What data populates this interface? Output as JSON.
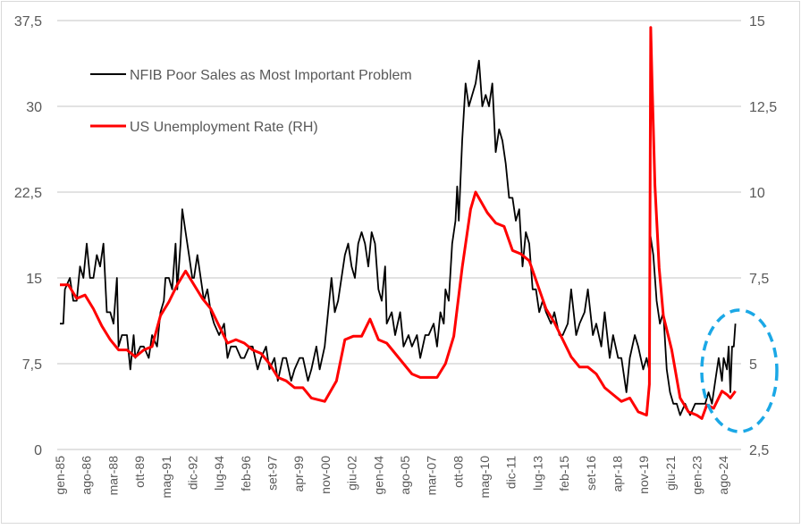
{
  "chart_data": {
    "type": "line",
    "title": "",
    "xlabel": "",
    "ylabel": "",
    "x_tick_labels": [
      "gen-85",
      "ago-86",
      "mar-88",
      "ott-89",
      "mag-91",
      "dic-92",
      "lug-94",
      "feb-96",
      "set-97",
      "apr-99",
      "nov-00",
      "giu-02",
      "gen-04",
      "ago-05",
      "mar-07",
      "ott-08",
      "mag-10",
      "dic-11",
      "lug-13",
      "feb-15",
      "set-16",
      "apr-18",
      "nov-19",
      "giu-21",
      "gen-23",
      "ago-24"
    ],
    "x_range_years": [
      1985.0,
      2025.3
    ],
    "y_left": {
      "range": [
        0,
        37.5
      ],
      "ticks": [
        "0",
        "7,5",
        "15",
        "22,5",
        "30",
        "37,5"
      ],
      "tick_values": [
        0,
        7.5,
        15,
        22.5,
        30,
        37.5
      ]
    },
    "y_right": {
      "range": [
        2.5,
        15
      ],
      "ticks": [
        "2,5",
        "5",
        "7,5",
        "10",
        "12,5",
        "15"
      ],
      "tick_values": [
        2.5,
        5,
        7.5,
        10,
        12.5,
        15
      ]
    },
    "grid": true,
    "legend_placement": "top-left",
    "series": [
      {
        "name": "NFIB Poor Sales as Most Important Problem",
        "axis": "left",
        "color": "#000000",
        "points": [
          [
            1985.0,
            11
          ],
          [
            1985.2,
            11
          ],
          [
            1985.3,
            14
          ],
          [
            1985.6,
            15
          ],
          [
            1985.8,
            13
          ],
          [
            1986.0,
            13
          ],
          [
            1986.2,
            16
          ],
          [
            1986.4,
            15
          ],
          [
            1986.6,
            18
          ],
          [
            1986.8,
            15
          ],
          [
            1987.0,
            15
          ],
          [
            1987.2,
            17
          ],
          [
            1987.4,
            16
          ],
          [
            1987.6,
            18
          ],
          [
            1987.8,
            12
          ],
          [
            1988.0,
            12
          ],
          [
            1988.2,
            11
          ],
          [
            1988.4,
            15
          ],
          [
            1988.5,
            9
          ],
          [
            1988.7,
            10
          ],
          [
            1989.0,
            10
          ],
          [
            1989.2,
            7
          ],
          [
            1989.4,
            10
          ],
          [
            1989.5,
            8
          ],
          [
            1989.8,
            9
          ],
          [
            1990.0,
            9
          ],
          [
            1990.3,
            8
          ],
          [
            1990.5,
            10
          ],
          [
            1990.8,
            9
          ],
          [
            1991.0,
            12
          ],
          [
            1991.2,
            13
          ],
          [
            1991.3,
            15
          ],
          [
            1991.5,
            15
          ],
          [
            1991.7,
            14
          ],
          [
            1991.9,
            18
          ],
          [
            1992.0,
            14
          ],
          [
            1992.2,
            18
          ],
          [
            1992.3,
            21
          ],
          [
            1992.5,
            19
          ],
          [
            1992.7,
            17
          ],
          [
            1992.9,
            15
          ],
          [
            1993.0,
            15
          ],
          [
            1993.2,
            17
          ],
          [
            1993.4,
            15
          ],
          [
            1993.6,
            13
          ],
          [
            1993.8,
            14
          ],
          [
            1994.0,
            12
          ],
          [
            1994.2,
            11
          ],
          [
            1994.5,
            10
          ],
          [
            1994.8,
            11
          ],
          [
            1995.0,
            8
          ],
          [
            1995.2,
            9
          ],
          [
            1995.5,
            9
          ],
          [
            1995.8,
            8
          ],
          [
            1996.0,
            8
          ],
          [
            1996.3,
            9
          ],
          [
            1996.5,
            9
          ],
          [
            1996.8,
            7
          ],
          [
            1997.0,
            8
          ],
          [
            1997.3,
            9
          ],
          [
            1997.5,
            7
          ],
          [
            1997.8,
            8
          ],
          [
            1998.0,
            6
          ],
          [
            1998.3,
            8
          ],
          [
            1998.5,
            8
          ],
          [
            1998.8,
            6
          ],
          [
            1999.0,
            7
          ],
          [
            1999.3,
            8
          ],
          [
            1999.5,
            8
          ],
          [
            1999.8,
            6
          ],
          [
            2000.0,
            7
          ],
          [
            2000.3,
            9
          ],
          [
            2000.5,
            7
          ],
          [
            2000.8,
            9
          ],
          [
            2001.0,
            12
          ],
          [
            2001.2,
            15
          ],
          [
            2001.4,
            12
          ],
          [
            2001.6,
            13
          ],
          [
            2001.8,
            15
          ],
          [
            2002.0,
            17
          ],
          [
            2002.2,
            18
          ],
          [
            2002.4,
            16
          ],
          [
            2002.6,
            15
          ],
          [
            2002.8,
            18
          ],
          [
            2003.0,
            19
          ],
          [
            2003.2,
            18
          ],
          [
            2003.4,
            16
          ],
          [
            2003.6,
            19
          ],
          [
            2003.8,
            18
          ],
          [
            2004.0,
            14
          ],
          [
            2004.2,
            13
          ],
          [
            2004.4,
            16
          ],
          [
            2004.5,
            11
          ],
          [
            2004.8,
            12
          ],
          [
            2005.0,
            10
          ],
          [
            2005.3,
            12
          ],
          [
            2005.5,
            9
          ],
          [
            2005.8,
            10
          ],
          [
            2006.0,
            9
          ],
          [
            2006.3,
            10
          ],
          [
            2006.5,
            8
          ],
          [
            2006.8,
            10
          ],
          [
            2007.0,
            10
          ],
          [
            2007.3,
            11
          ],
          [
            2007.5,
            9
          ],
          [
            2007.7,
            12
          ],
          [
            2007.9,
            11
          ],
          [
            2008.0,
            14
          ],
          [
            2008.2,
            13
          ],
          [
            2008.4,
            18
          ],
          [
            2008.6,
            20
          ],
          [
            2008.7,
            23
          ],
          [
            2008.8,
            20
          ],
          [
            2009.0,
            27
          ],
          [
            2009.2,
            32
          ],
          [
            2009.4,
            30
          ],
          [
            2009.6,
            31
          ],
          [
            2009.8,
            32
          ],
          [
            2010.0,
            34
          ],
          [
            2010.2,
            30
          ],
          [
            2010.4,
            31
          ],
          [
            2010.6,
            30
          ],
          [
            2010.8,
            32
          ],
          [
            2011.0,
            26
          ],
          [
            2011.2,
            28
          ],
          [
            2011.4,
            27
          ],
          [
            2011.6,
            25
          ],
          [
            2011.8,
            22
          ],
          [
            2012.0,
            22
          ],
          [
            2012.2,
            20
          ],
          [
            2012.4,
            21
          ],
          [
            2012.6,
            16
          ],
          [
            2012.8,
            19
          ],
          [
            2013.0,
            18
          ],
          [
            2013.2,
            14
          ],
          [
            2013.4,
            14
          ],
          [
            2013.6,
            12
          ],
          [
            2013.8,
            13
          ],
          [
            2014.0,
            12
          ],
          [
            2014.3,
            11
          ],
          [
            2014.5,
            12
          ],
          [
            2014.8,
            10
          ],
          [
            2015.0,
            10
          ],
          [
            2015.3,
            11
          ],
          [
            2015.5,
            14
          ],
          [
            2015.8,
            10
          ],
          [
            2016.0,
            11
          ],
          [
            2016.3,
            12
          ],
          [
            2016.5,
            14
          ],
          [
            2016.8,
            10
          ],
          [
            2017.0,
            11
          ],
          [
            2017.3,
            9
          ],
          [
            2017.5,
            12
          ],
          [
            2017.8,
            8
          ],
          [
            2018.0,
            10
          ],
          [
            2018.3,
            8
          ],
          [
            2018.5,
            8
          ],
          [
            2018.8,
            5
          ],
          [
            2019.0,
            8
          ],
          [
            2019.3,
            10
          ],
          [
            2019.5,
            9
          ],
          [
            2019.8,
            7
          ],
          [
            2020.0,
            8
          ],
          [
            2020.15,
            7
          ],
          [
            2020.2,
            19
          ],
          [
            2020.4,
            17
          ],
          [
            2020.6,
            13
          ],
          [
            2020.8,
            11
          ],
          [
            2021.0,
            12
          ],
          [
            2021.2,
            7
          ],
          [
            2021.4,
            5
          ],
          [
            2021.6,
            4
          ],
          [
            2021.8,
            4
          ],
          [
            2022.0,
            3
          ],
          [
            2022.3,
            4
          ],
          [
            2022.6,
            3
          ],
          [
            2022.9,
            4
          ],
          [
            2023.2,
            4
          ],
          [
            2023.5,
            4
          ],
          [
            2023.7,
            5
          ],
          [
            2023.9,
            4
          ],
          [
            2024.1,
            6
          ],
          [
            2024.3,
            8
          ],
          [
            2024.5,
            6
          ],
          [
            2024.6,
            8
          ],
          [
            2024.8,
            7
          ],
          [
            2024.9,
            9
          ],
          [
            2025.0,
            5
          ],
          [
            2025.1,
            9
          ],
          [
            2025.2,
            9
          ],
          [
            2025.25,
            10
          ],
          [
            2025.3,
            11
          ]
        ]
      },
      {
        "name": "US Unemployment Rate (RH)",
        "axis": "right",
        "color": "#ff0000",
        "points": [
          [
            1985.0,
            7.3
          ],
          [
            1985.5,
            7.3
          ],
          [
            1986.0,
            6.9
          ],
          [
            1986.5,
            7.0
          ],
          [
            1987.0,
            6.6
          ],
          [
            1987.5,
            6.1
          ],
          [
            1988.0,
            5.7
          ],
          [
            1988.5,
            5.4
          ],
          [
            1989.0,
            5.4
          ],
          [
            1989.5,
            5.2
          ],
          [
            1990.0,
            5.4
          ],
          [
            1990.5,
            5.5
          ],
          [
            1991.0,
            6.4
          ],
          [
            1991.5,
            6.8
          ],
          [
            1992.0,
            7.3
          ],
          [
            1992.5,
            7.7
          ],
          [
            1993.0,
            7.3
          ],
          [
            1993.5,
            6.9
          ],
          [
            1994.0,
            6.6
          ],
          [
            1994.5,
            6.1
          ],
          [
            1995.0,
            5.6
          ],
          [
            1995.5,
            5.7
          ],
          [
            1996.0,
            5.6
          ],
          [
            1996.5,
            5.4
          ],
          [
            1997.0,
            5.3
          ],
          [
            1997.5,
            5.0
          ],
          [
            1998.0,
            4.6
          ],
          [
            1998.5,
            4.5
          ],
          [
            1999.0,
            4.3
          ],
          [
            1999.5,
            4.3
          ],
          [
            2000.0,
            4.0
          ],
          [
            2000.8,
            3.9
          ],
          [
            2001.5,
            4.5
          ],
          [
            2002.0,
            5.7
          ],
          [
            2002.5,
            5.8
          ],
          [
            2003.0,
            5.8
          ],
          [
            2003.5,
            6.3
          ],
          [
            2004.0,
            5.7
          ],
          [
            2004.5,
            5.6
          ],
          [
            2005.0,
            5.3
          ],
          [
            2005.5,
            5.0
          ],
          [
            2006.0,
            4.7
          ],
          [
            2006.5,
            4.6
          ],
          [
            2007.0,
            4.6
          ],
          [
            2007.5,
            4.6
          ],
          [
            2008.0,
            5.0
          ],
          [
            2008.5,
            5.8
          ],
          [
            2009.0,
            7.8
          ],
          [
            2009.5,
            9.5
          ],
          [
            2009.8,
            10.0
          ],
          [
            2010.5,
            9.4
          ],
          [
            2011.0,
            9.1
          ],
          [
            2011.5,
            9.0
          ],
          [
            2012.0,
            8.3
          ],
          [
            2012.5,
            8.2
          ],
          [
            2013.0,
            8.0
          ],
          [
            2013.5,
            7.3
          ],
          [
            2014.0,
            6.6
          ],
          [
            2014.5,
            6.2
          ],
          [
            2015.0,
            5.7
          ],
          [
            2015.5,
            5.2
          ],
          [
            2016.0,
            4.9
          ],
          [
            2016.5,
            4.9
          ],
          [
            2017.0,
            4.7
          ],
          [
            2017.5,
            4.3
          ],
          [
            2018.0,
            4.1
          ],
          [
            2018.5,
            3.9
          ],
          [
            2019.0,
            4.0
          ],
          [
            2019.5,
            3.6
          ],
          [
            2020.0,
            3.5
          ],
          [
            2020.17,
            4.4
          ],
          [
            2020.25,
            14.8
          ],
          [
            2020.33,
            13.2
          ],
          [
            2020.5,
            10.2
          ],
          [
            2020.75,
            7.8
          ],
          [
            2021.0,
            6.4
          ],
          [
            2021.5,
            5.4
          ],
          [
            2022.0,
            4.0
          ],
          [
            2022.5,
            3.6
          ],
          [
            2023.0,
            3.5
          ],
          [
            2023.3,
            3.4
          ],
          [
            2023.6,
            3.8
          ],
          [
            2024.0,
            3.7
          ],
          [
            2024.5,
            4.2
          ],
          [
            2024.8,
            4.1
          ],
          [
            2025.0,
            4.0
          ],
          [
            2025.3,
            4.2
          ]
        ]
      }
    ],
    "annotations": [
      {
        "type": "dashed-ellipse",
        "color": "#1ba8e6",
        "note_range_years": [
          2023.0,
          2025.3
        ]
      }
    ]
  }
}
